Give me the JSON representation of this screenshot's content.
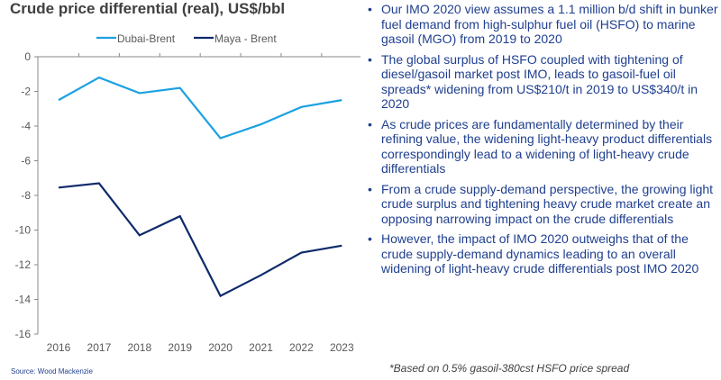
{
  "chart_data": {
    "type": "line",
    "title": "Crude price differential (real), US$/bbl",
    "categories": [
      "2016",
      "2017",
      "2018",
      "2019",
      "2020",
      "2021",
      "2022",
      "2023"
    ],
    "ylim": [
      -16,
      0
    ],
    "yticks": [
      0,
      -2,
      -4,
      -6,
      -8,
      -10,
      -12,
      -14,
      -16
    ],
    "legend_position": "top",
    "grid": false,
    "series": [
      {
        "name": "Dubai-Brent",
        "color": "#1ba1e2",
        "values": [
          -2.5,
          -1.2,
          -2.1,
          -1.8,
          -4.7,
          -3.9,
          -2.9,
          -2.5
        ]
      },
      {
        "name": "Maya - Brent",
        "color": "#0f2a6b",
        "values": [
          -7.55,
          -7.3,
          -10.3,
          -9.2,
          -13.8,
          -12.6,
          -11.3,
          -10.9
        ]
      }
    ]
  },
  "source": "Source: Wood Mackenzie",
  "bullets": [
    "Our IMO 2020 view assumes a 1.1 million b/d shift in bunker fuel demand from high-sulphur fuel oil (HSFO) to marine gasoil (MGO) from 2019 to 2020",
    "The global surplus of HSFO coupled with tightening of diesel/gasoil market post IMO, leads to gasoil-fuel oil spreads* widening from US$210/t in 2019 to US$340/t in 2020",
    "As crude prices are fundamentally  determined by their refining value, the widening light-heavy product differentials correspondingly lead to a widening of light-heavy  crude differentials",
    "From a crude supply-demand perspective, the growing light crude surplus and tightening heavy crude market create an opposing narrowing impact on the crude differentials",
    "However, the impact of IMO 2020 outweighs that of the crude supply-demand dynamics leading to an overall widening of light-heavy  crude differentials post IMO 2020"
  ],
  "footnote": "*Based on 0.5% gasoil-380cst HSFO price spread"
}
